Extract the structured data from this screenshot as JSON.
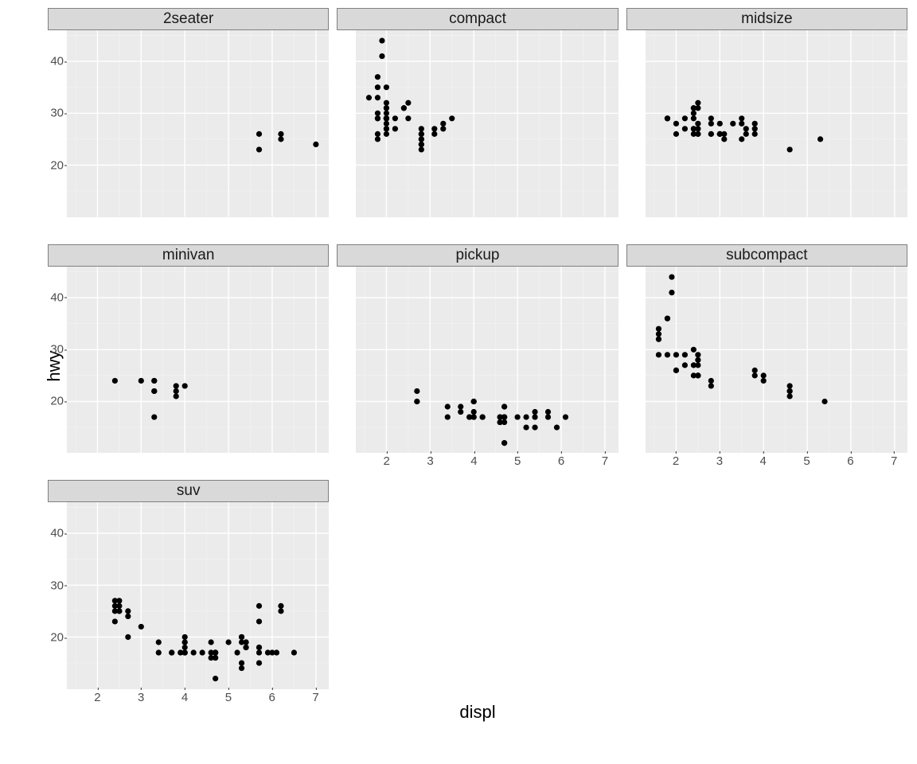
{
  "chart": {
    "type": "scatter-facets",
    "xlabel": "displ",
    "ylabel": "hwy",
    "xlim": [
      1.3,
      7.3
    ],
    "ylim": [
      10,
      46
    ],
    "xticks": [
      2,
      3,
      4,
      5,
      6,
      7
    ],
    "yticks": [
      20,
      30,
      40
    ],
    "background_color": "#ffffff",
    "panel_color": "#ebebeb",
    "major_grid_color": "#ffffff",
    "minor_grid_color": "#f3f3f3",
    "strip_color": "#d9d9d9",
    "strip_border_color": "#7f7f7f",
    "tick_label_color": "#4d4d4d",
    "axis_label_color": "#000000",
    "point_color": "#000000",
    "point_radius": 3.6,
    "major_grid_width": 1.4,
    "minor_grid_width": 0.7,
    "strip_fontsize": 19,
    "tick_fontsize": 15,
    "label_fontsize": 22,
    "grid_cols": 3,
    "grid_rows": 3,
    "facets": [
      {
        "label": "2seater",
        "row": 0,
        "col": 0,
        "show_x": false,
        "show_y": true,
        "points": [
          {
            "x": 5.7,
            "y": 26
          },
          {
            "x": 5.7,
            "y": 23
          },
          {
            "x": 6.2,
            "y": 26
          },
          {
            "x": 6.2,
            "y": 25
          },
          {
            "x": 7.0,
            "y": 24
          }
        ]
      },
      {
        "label": "compact",
        "row": 0,
        "col": 1,
        "show_x": false,
        "show_y": false,
        "points": [
          {
            "x": 1.8,
            "y": 29
          },
          {
            "x": 1.8,
            "y": 29
          },
          {
            "x": 2.0,
            "y": 31
          },
          {
            "x": 2.0,
            "y": 30
          },
          {
            "x": 2.8,
            "y": 26
          },
          {
            "x": 2.8,
            "y": 26
          },
          {
            "x": 3.1,
            "y": 27
          },
          {
            "x": 1.8,
            "y": 26
          },
          {
            "x": 1.8,
            "y": 25
          },
          {
            "x": 2.0,
            "y": 28
          },
          {
            "x": 2.0,
            "y": 27
          },
          {
            "x": 2.0,
            "y": 29
          },
          {
            "x": 2.0,
            "y": 29
          },
          {
            "x": 2.8,
            "y": 24
          },
          {
            "x": 2.8,
            "y": 24
          },
          {
            "x": 2.8,
            "y": 25
          },
          {
            "x": 2.8,
            "y": 25
          },
          {
            "x": 2.0,
            "y": 29
          },
          {
            "x": 2.0,
            "y": 27
          },
          {
            "x": 2.0,
            "y": 31
          },
          {
            "x": 2.0,
            "y": 32
          },
          {
            "x": 2.8,
            "y": 27
          },
          {
            "x": 1.9,
            "y": 44
          },
          {
            "x": 2.0,
            "y": 26
          },
          {
            "x": 2.0,
            "y": 29
          },
          {
            "x": 2.0,
            "y": 29
          },
          {
            "x": 2.0,
            "y": 29
          },
          {
            "x": 2.0,
            "y": 29
          },
          {
            "x": 2.8,
            "y": 23
          },
          {
            "x": 1.9,
            "y": 41
          },
          {
            "x": 2.0,
            "y": 29
          },
          {
            "x": 2.5,
            "y": 29
          },
          {
            "x": 2.5,
            "y": 32
          },
          {
            "x": 1.8,
            "y": 30
          },
          {
            "x": 1.8,
            "y": 33
          },
          {
            "x": 1.8,
            "y": 35
          },
          {
            "x": 1.8,
            "y": 37
          },
          {
            "x": 2.0,
            "y": 35
          },
          {
            "x": 1.6,
            "y": 33
          },
          {
            "x": 2.2,
            "y": 27
          },
          {
            "x": 2.2,
            "y": 29
          },
          {
            "x": 2.4,
            "y": 31
          },
          {
            "x": 2.4,
            "y": 31
          },
          {
            "x": 3.1,
            "y": 26
          },
          {
            "x": 3.5,
            "y": 29
          },
          {
            "x": 3.3,
            "y": 28
          },
          {
            "x": 3.3,
            "y": 27
          }
        ]
      },
      {
        "label": "midsize",
        "row": 0,
        "col": 2,
        "show_x": false,
        "show_y": false,
        "points": [
          {
            "x": 2.4,
            "y": 27
          },
          {
            "x": 2.4,
            "y": 30
          },
          {
            "x": 3.1,
            "y": 26
          },
          {
            "x": 3.5,
            "y": 29
          },
          {
            "x": 3.6,
            "y": 26
          },
          {
            "x": 2.4,
            "y": 26
          },
          {
            "x": 2.4,
            "y": 27
          },
          {
            "x": 2.5,
            "y": 26
          },
          {
            "x": 2.5,
            "y": 28
          },
          {
            "x": 3.3,
            "y": 28
          },
          {
            "x": 2.5,
            "y": 26
          },
          {
            "x": 2.5,
            "y": 27
          },
          {
            "x": 3.0,
            "y": 26
          },
          {
            "x": 3.0,
            "y": 28
          },
          {
            "x": 3.5,
            "y": 25
          },
          {
            "x": 3.1,
            "y": 25
          },
          {
            "x": 3.8,
            "y": 26
          },
          {
            "x": 3.8,
            "y": 27
          },
          {
            "x": 3.8,
            "y": 28
          },
          {
            "x": 5.3,
            "y": 25
          },
          {
            "x": 2.2,
            "y": 29
          },
          {
            "x": 2.2,
            "y": 27
          },
          {
            "x": 2.4,
            "y": 31
          },
          {
            "x": 2.4,
            "y": 31
          },
          {
            "x": 3.0,
            "y": 26
          },
          {
            "x": 3.0,
            "y": 26
          },
          {
            "x": 3.5,
            "y": 28
          },
          {
            "x": 1.8,
            "y": 29
          },
          {
            "x": 1.8,
            "y": 29
          },
          {
            "x": 2.0,
            "y": 28
          },
          {
            "x": 2.8,
            "y": 26
          },
          {
            "x": 2.8,
            "y": 26
          },
          {
            "x": 3.6,
            "y": 27
          },
          {
            "x": 2.0,
            "y": 26
          },
          {
            "x": 2.5,
            "y": 31
          },
          {
            "x": 2.5,
            "y": 32
          },
          {
            "x": 2.8,
            "y": 28
          },
          {
            "x": 2.8,
            "y": 29
          },
          {
            "x": 1.8,
            "y": 29
          },
          {
            "x": 4.6,
            "y": 23
          },
          {
            "x": 2.4,
            "y": 29
          }
        ]
      },
      {
        "label": "minivan",
        "row": 1,
        "col": 0,
        "show_x": false,
        "show_y": true,
        "points": [
          {
            "x": 2.4,
            "y": 24
          },
          {
            "x": 3.0,
            "y": 24
          },
          {
            "x": 3.3,
            "y": 22
          },
          {
            "x": 3.3,
            "y": 22
          },
          {
            "x": 3.3,
            "y": 24
          },
          {
            "x": 3.3,
            "y": 24
          },
          {
            "x": 3.3,
            "y": 17
          },
          {
            "x": 3.8,
            "y": 22
          },
          {
            "x": 3.8,
            "y": 21
          },
          {
            "x": 3.8,
            "y": 23
          },
          {
            "x": 4.0,
            "y": 23
          }
        ]
      },
      {
        "label": "pickup",
        "row": 1,
        "col": 1,
        "show_x": true,
        "show_y": false,
        "points": [
          {
            "x": 3.7,
            "y": 19
          },
          {
            "x": 3.7,
            "y": 18
          },
          {
            "x": 3.9,
            "y": 17
          },
          {
            "x": 3.9,
            "y": 17
          },
          {
            "x": 4.7,
            "y": 19
          },
          {
            "x": 4.7,
            "y": 19
          },
          {
            "x": 4.7,
            "y": 12
          },
          {
            "x": 5.2,
            "y": 17
          },
          {
            "x": 5.2,
            "y": 15
          },
          {
            "x": 5.7,
            "y": 17
          },
          {
            "x": 5.9,
            "y": 15
          },
          {
            "x": 4.7,
            "y": 16
          },
          {
            "x": 4.7,
            "y": 12
          },
          {
            "x": 4.7,
            "y": 17
          },
          {
            "x": 4.7,
            "y": 17
          },
          {
            "x": 4.2,
            "y": 17
          },
          {
            "x": 4.2,
            "y": 17
          },
          {
            "x": 4.6,
            "y": 16
          },
          {
            "x": 4.6,
            "y": 16
          },
          {
            "x": 4.6,
            "y": 17
          },
          {
            "x": 5.4,
            "y": 17
          },
          {
            "x": 5.4,
            "y": 15
          },
          {
            "x": 5.4,
            "y": 18
          },
          {
            "x": 4.0,
            "y": 17
          },
          {
            "x": 4.0,
            "y": 20
          },
          {
            "x": 4.0,
            "y": 17
          },
          {
            "x": 4.0,
            "y": 20
          },
          {
            "x": 4.6,
            "y": 17
          },
          {
            "x": 5.0,
            "y": 17
          },
          {
            "x": 2.7,
            "y": 20
          },
          {
            "x": 2.7,
            "y": 20
          },
          {
            "x": 2.7,
            "y": 22
          },
          {
            "x": 3.4,
            "y": 17
          },
          {
            "x": 3.4,
            "y": 19
          },
          {
            "x": 4.0,
            "y": 18
          },
          {
            "x": 4.7,
            "y": 17
          },
          {
            "x": 4.7,
            "y": 17
          },
          {
            "x": 5.7,
            "y": 18
          },
          {
            "x": 6.1,
            "y": 17
          },
          {
            "x": 4.0,
            "y": 20
          }
        ]
      },
      {
        "label": "subcompact",
        "row": 1,
        "col": 2,
        "show_x": true,
        "show_y": false,
        "points": [
          {
            "x": 3.8,
            "y": 26
          },
          {
            "x": 3.8,
            "y": 25
          },
          {
            "x": 4.0,
            "y": 25
          },
          {
            "x": 4.0,
            "y": 24
          },
          {
            "x": 4.6,
            "y": 21
          },
          {
            "x": 4.6,
            "y": 22
          },
          {
            "x": 4.6,
            "y": 23
          },
          {
            "x": 4.6,
            "y": 22
          },
          {
            "x": 5.4,
            "y": 20
          },
          {
            "x": 1.6,
            "y": 33
          },
          {
            "x": 1.6,
            "y": 32
          },
          {
            "x": 1.6,
            "y": 32
          },
          {
            "x": 1.6,
            "y": 29
          },
          {
            "x": 1.6,
            "y": 34
          },
          {
            "x": 1.8,
            "y": 36
          },
          {
            "x": 1.8,
            "y": 36
          },
          {
            "x": 1.8,
            "y": 29
          },
          {
            "x": 2.0,
            "y": 26
          },
          {
            "x": 2.4,
            "y": 27
          },
          {
            "x": 2.4,
            "y": 30
          },
          {
            "x": 2.4,
            "y": 25
          },
          {
            "x": 2.5,
            "y": 25
          },
          {
            "x": 2.5,
            "y": 27
          },
          {
            "x": 2.2,
            "y": 27
          },
          {
            "x": 2.2,
            "y": 29
          },
          {
            "x": 2.5,
            "y": 25
          },
          {
            "x": 2.5,
            "y": 25
          },
          {
            "x": 1.9,
            "y": 44
          },
          {
            "x": 1.9,
            "y": 41
          },
          {
            "x": 2.0,
            "y": 29
          },
          {
            "x": 2.0,
            "y": 26
          },
          {
            "x": 2.5,
            "y": 28
          },
          {
            "x": 2.5,
            "y": 29
          },
          {
            "x": 2.8,
            "y": 23
          },
          {
            "x": 2.8,
            "y": 24
          }
        ]
      },
      {
        "label": "suv",
        "row": 2,
        "col": 0,
        "show_x": true,
        "show_y": true,
        "points": [
          {
            "x": 5.3,
            "y": 20
          },
          {
            "x": 5.3,
            "y": 15
          },
          {
            "x": 5.3,
            "y": 20
          },
          {
            "x": 5.7,
            "y": 17
          },
          {
            "x": 6.0,
            "y": 17
          },
          {
            "x": 5.7,
            "y": 26
          },
          {
            "x": 5.7,
            "y": 23
          },
          {
            "x": 6.2,
            "y": 26
          },
          {
            "x": 6.2,
            "y": 25
          },
          {
            "x": 5.3,
            "y": 19
          },
          {
            "x": 5.3,
            "y": 14
          },
          {
            "x": 5.7,
            "y": 15
          },
          {
            "x": 6.5,
            "y": 17
          },
          {
            "x": 2.4,
            "y": 27
          },
          {
            "x": 2.4,
            "y": 25
          },
          {
            "x": 2.4,
            "y": 26
          },
          {
            "x": 2.4,
            "y": 23
          },
          {
            "x": 2.5,
            "y": 26
          },
          {
            "x": 2.5,
            "y": 25
          },
          {
            "x": 2.5,
            "y": 27
          },
          {
            "x": 2.5,
            "y": 25
          },
          {
            "x": 2.7,
            "y": 25
          },
          {
            "x": 2.7,
            "y": 24
          },
          {
            "x": 3.4,
            "y": 17
          },
          {
            "x": 3.4,
            "y": 19
          },
          {
            "x": 3.7,
            "y": 17
          },
          {
            "x": 4.0,
            "y": 20
          },
          {
            "x": 4.7,
            "y": 17
          },
          {
            "x": 4.7,
            "y": 12
          },
          {
            "x": 4.7,
            "y": 17
          },
          {
            "x": 5.7,
            "y": 18
          },
          {
            "x": 6.1,
            "y": 17
          },
          {
            "x": 4.0,
            "y": 17
          },
          {
            "x": 4.2,
            "y": 17
          },
          {
            "x": 4.4,
            "y": 17
          },
          {
            "x": 4.6,
            "y": 16
          },
          {
            "x": 5.4,
            "y": 18
          },
          {
            "x": 5.4,
            "y": 18
          },
          {
            "x": 5.4,
            "y": 18
          },
          {
            "x": 4.0,
            "y": 19
          },
          {
            "x": 4.0,
            "y": 19
          },
          {
            "x": 4.0,
            "y": 17
          },
          {
            "x": 4.0,
            "y": 17
          },
          {
            "x": 4.6,
            "y": 19
          },
          {
            "x": 5.0,
            "y": 19
          },
          {
            "x": 3.0,
            "y": 22
          },
          {
            "x": 3.7,
            "y": 17
          },
          {
            "x": 4.0,
            "y": 17
          },
          {
            "x": 4.7,
            "y": 17
          },
          {
            "x": 4.7,
            "y": 17
          },
          {
            "x": 4.7,
            "y": 16
          },
          {
            "x": 4.7,
            "y": 16
          },
          {
            "x": 3.9,
            "y": 17
          },
          {
            "x": 4.7,
            "y": 17
          },
          {
            "x": 5.2,
            "y": 17
          },
          {
            "x": 5.7,
            "y": 18
          },
          {
            "x": 5.9,
            "y": 17
          },
          {
            "x": 4.6,
            "y": 17
          },
          {
            "x": 5.4,
            "y": 19
          },
          {
            "x": 5.4,
            "y": 19
          },
          {
            "x": 2.7,
            "y": 20
          },
          {
            "x": 4.0,
            "y": 18
          }
        ]
      }
    ]
  }
}
